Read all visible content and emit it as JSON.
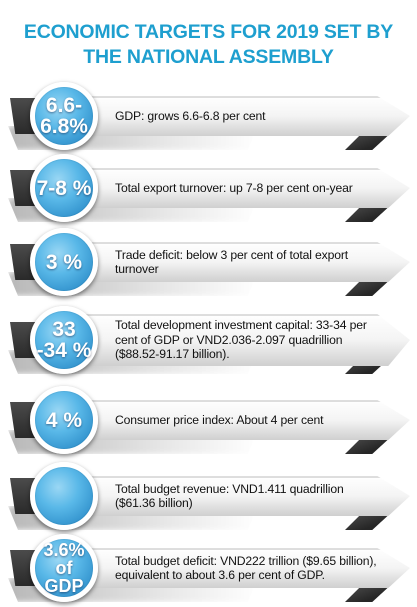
{
  "title": {
    "line1": "ECONOMIC TARGETS FOR 2019 SET BY",
    "line2": "THE NATIONAL ASSEMBLY"
  },
  "targets": [
    {
      "value": "6.6-\n6.8%",
      "description": "GDP: grows 6.6-6.8 per cent"
    },
    {
      "value": "7-8 %",
      "description": "Total export turnover: up 7-8 per cent on-year"
    },
    {
      "value": "3 %",
      "description": "Trade deficit: below 3 per cent of total export turnover"
    },
    {
      "value": "33\n-34 %",
      "description": "Total development investment capital: 33-34 per cent of GDP or VND2.036-2.097 quadrillion ($88.52-91.17 billion)."
    },
    {
      "value": "4 %",
      "description": "Consumer price index: About 4 per cent"
    },
    {
      "value": "",
      "description": "Total budget revenue: VND1.411 quadrillion ($61.36 billion)"
    },
    {
      "value": "3.6%\nof GDP",
      "description": "Total budget deficit: VND222 trillion ($9.65 billion), equivalent to about 3.6 per cent of GDP."
    }
  ],
  "colors": {
    "title": "#1e9fcf",
    "badge": "#3aa6e0",
    "ribbon_dark": "#2f2f2f"
  }
}
